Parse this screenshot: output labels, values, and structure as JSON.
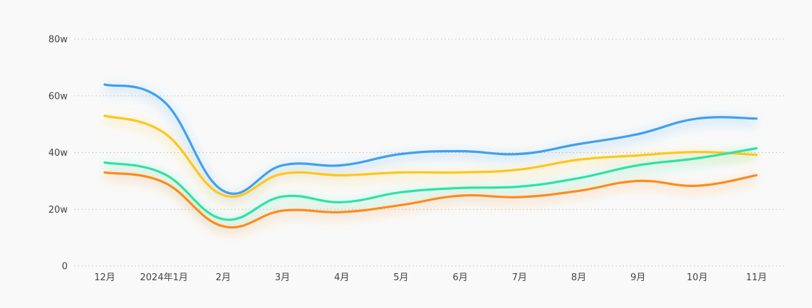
{
  "chart_data": {
    "type": "line",
    "categories": [
      "12月",
      "2024年1月",
      "2月",
      "3月",
      "4月",
      "5月",
      "6月",
      "7月",
      "8月",
      "9月",
      "10月",
      "11月"
    ],
    "y_ticks": [
      "0",
      "20w",
      "40w",
      "60w",
      "80w"
    ],
    "ylim": [
      0,
      80
    ],
    "y_unit": "w",
    "grid": true,
    "legend": "none",
    "colors": [
      "#3fa0ee",
      "#ffc61a",
      "#2de3a4",
      "#ff8a1a"
    ],
    "series": [
      {
        "values": [
          64,
          58,
          26.5,
          35.5,
          35.5,
          39.5,
          40.5,
          39.5,
          43,
          46.5,
          52,
          52
        ]
      },
      {
        "values": [
          53,
          47,
          25,
          32.5,
          32,
          33,
          33,
          34,
          37.5,
          39,
          40.2,
          39.2
        ]
      },
      {
        "values": [
          36.5,
          32.5,
          16.5,
          24.5,
          22.5,
          26,
          27.5,
          28,
          31,
          35.5,
          38,
          41.5
        ]
      },
      {
        "values": [
          33,
          29.5,
          14,
          19.5,
          19,
          21.5,
          24.8,
          24.3,
          26.5,
          30,
          28.3,
          32
        ]
      }
    ]
  }
}
